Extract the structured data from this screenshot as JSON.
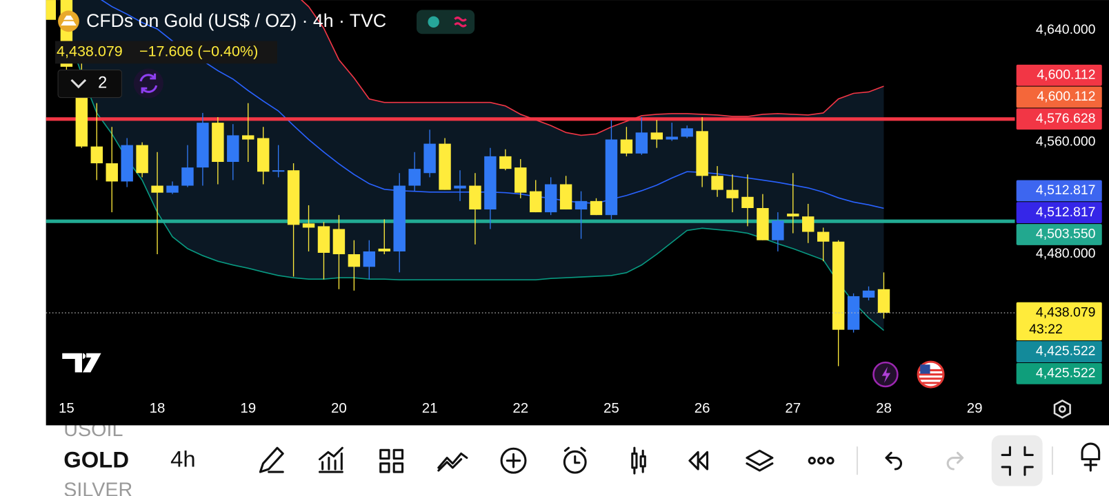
{
  "header": {
    "symbol_title": "CFDs on Gold (US$ / OZ) · 4h · TVC",
    "last_price": "4,438.079",
    "change": "−17.606 (−0.40%)",
    "layout_count": "2"
  },
  "toolbar": {
    "symbols": [
      "USOIL",
      "GOLD",
      "SILVER"
    ],
    "interval": "4h"
  },
  "chart_data": {
    "type": "candlestick",
    "categories": [
      "15",
      null,
      null,
      null,
      null,
      null,
      "18",
      null,
      null,
      null,
      null,
      null,
      "19",
      null,
      null,
      null,
      null,
      null,
      "20",
      null,
      null,
      null,
      null,
      null,
      "21",
      null,
      null,
      null,
      null,
      null,
      "22",
      null,
      null,
      null,
      null,
      null,
      "25",
      null,
      null,
      null,
      null,
      null,
      "26",
      null,
      null,
      null,
      null,
      null,
      "27",
      null,
      null,
      null,
      null,
      null,
      "28",
      null,
      null,
      null,
      null,
      null,
      "29"
    ],
    "open": [
      4680,
      4611,
      4557,
      4545,
      4532,
      4558,
      4529,
      4524,
      4529,
      4542,
      4574,
      4546,
      4565,
      4563,
      4539,
      4540,
      4502,
      4500,
      4498,
      4480,
      4471,
      4484,
      4482,
      4529,
      4538,
      4559,
      4527,
      4529,
      4512,
      4550,
      4542,
      4525,
      4510,
      4530,
      4512,
      4518,
      4508,
      4562,
      4552,
      4567,
      4562,
      4564,
      4568,
      4536,
      4526,
      4521,
      4513,
      4490,
      4509,
      4507,
      4496,
      4489,
      4426,
      4449,
      4455,
      null,
      null,
      null,
      null,
      null,
      null
    ],
    "high": [
      4690,
      4619,
      4588,
      4571,
      4563,
      4560,
      4553,
      4532,
      4558,
      4581,
      4578,
      4573,
      4588,
      4571,
      4558,
      4545,
      4515,
      4503,
      4508,
      4490,
      4490,
      4505,
      4538,
      4553,
      4569,
      4563,
      4540,
      4538,
      4556,
      4555,
      4548,
      4533,
      4535,
      4536,
      4525,
      4520,
      4576,
      4571,
      4578,
      4576,
      4574,
      4572,
      4578,
      4543,
      4537,
      4537,
      4523,
      4510,
      4538,
      4516,
      4499,
      4490,
      4452,
      4457,
      4467,
      null,
      null,
      null,
      null,
      null,
      null
    ],
    "low": [
      4608,
      4556,
      4533,
      4510,
      4528,
      4535,
      4480,
      4523,
      4528,
      4529,
      4530,
      4533,
      4546,
      4530,
      4535,
      4464,
      4482,
      4462,
      4455,
      4454,
      4462,
      4480,
      4467,
      4525,
      4535,
      4526,
      4518,
      4487,
      4498,
      4540,
      4520,
      4510,
      4508,
      4512,
      4491,
      4508,
      4505,
      4550,
      4551,
      4556,
      4561,
      4563,
      4528,
      4521,
      4510,
      4500,
      4490,
      4482,
      4495,
      4488,
      4475,
      4400,
      4424,
      4447,
      4434,
      null,
      null,
      null,
      null,
      null,
      null
    ],
    "close": [
      4614,
      4557,
      4545,
      4532,
      4558,
      4538,
      4524,
      4529,
      4542,
      4574,
      4546,
      4565,
      4562,
      4539,
      4540,
      4501,
      4499,
      4481,
      4480,
      4471,
      4482,
      4482,
      4529,
      4541,
      4559,
      4526,
      4529,
      4512,
      4550,
      4541,
      4524,
      4510,
      4530,
      4512,
      4518,
      4508,
      4562,
      4552,
      4567,
      4562,
      4564,
      4570,
      4536,
      4526,
      4520,
      4513,
      4490,
      4504,
      4507,
      4496,
      4489,
      4426,
      4450,
      4454,
      4438.079,
      null,
      null,
      null,
      null,
      null,
      null
    ],
    "up_color": "#3179f5",
    "down_color": "#ffeb3b",
    "overlays": [
      {
        "color": "#f23645",
        "values": [
          4700,
          4692,
          4697,
          4697,
          4697,
          4692,
          4692,
          4689.5,
          4687,
          4687,
          4684,
          4682,
          4679,
          4677,
          4672,
          4667,
          4657,
          4641.5,
          4619,
          4606,
          4591,
          4588.5,
          4588.5,
          4588.5,
          4588.5,
          4588.5,
          4588.5,
          4588.5,
          4588.5,
          4586,
          4580,
          4576,
          4572,
          4567,
          4565,
          4566,
          4571,
          4575,
          4579,
          4580,
          4580.5,
          4580.5,
          4580,
          4579.5,
          4578.5,
          4578.5,
          4580,
          4580.5,
          4580,
          4579.5,
          4581,
          4591,
          4595,
          4596,
          4600.112,
          null,
          null,
          null,
          null,
          null,
          null
        ]
      },
      {
        "color": "#2962ff",
        "values": [
          4680,
          4672,
          4664,
          4657,
          4651.6,
          4645.6,
          4641,
          4632.4,
          4626.4,
          4618.3,
          4611.2,
          4605.2,
          4597,
          4589.5,
          4582.4,
          4572,
          4562,
          4553,
          4544.6,
          4537,
          4530.4,
          4526.4,
          4525.4,
          4525,
          4524.4,
          4524.4,
          4524.4,
          4524.4,
          4524.4,
          4524,
          4523,
          4521.3,
          4520,
          4518,
          4517,
          4516.3,
          4519.3,
          4522,
          4525.4,
          4529.4,
          4534.5,
          4539,
          4538.5,
          4537.5,
          4536,
          4534.5,
          4533,
          4531.4,
          4529.4,
          4527.4,
          4524.4,
          4520.3,
          4517.3,
          4515.3,
          4512.817,
          null,
          null,
          null,
          null,
          null,
          null
        ]
      },
      {
        "color": "#089981",
        "values": [
          4640,
          4608.7,
          4581,
          4566,
          4548,
          4533,
          4510,
          4492.5,
          4484,
          4479,
          4475,
          4472.3,
          4470,
          4467.3,
          4464.8,
          4463.2,
          4462.2,
          4462.2,
          4463.2,
          4463.2,
          4462.2,
          4462.2,
          4461.7,
          4461.7,
          4461.7,
          4461.7,
          4461.7,
          4461.7,
          4461.7,
          4461.7,
          4461.7,
          4461.7,
          4462.7,
          4463.2,
          4463.7,
          4464.2,
          4464.8,
          4466.8,
          4472.3,
          4480,
          4488.5,
          4497,
          4498.6,
          4497.6,
          4496.6,
          4495,
          4491.5,
          4487.5,
          4484,
          4480,
          4476,
          4459.7,
          4445.6,
          4434.5,
          4425.522,
          null,
          null,
          null,
          null,
          null,
          null
        ]
      }
    ],
    "band_fill": "#0b1824",
    "hlines": [
      {
        "value": 4576.628,
        "color": "#f23645"
      },
      {
        "value": 4503.55,
        "color": "#22ab94"
      }
    ],
    "ylim": [
      4378.9,
      4661.7
    ],
    "yticks": [
      {
        "value": 4640,
        "label": "4,640.000"
      },
      {
        "value": 4560,
        "label": "4,560.000"
      },
      {
        "value": 4480,
        "label": "4,480.000"
      }
    ],
    "grid": false,
    "price_tags": [
      {
        "value": 4600.112,
        "label": "4,600.112",
        "color": "#f23645"
      },
      {
        "value": 4600.112,
        "label": "4,600.112",
        "color": "#f4673a"
      },
      {
        "value": 4576.628,
        "label": "4,576.628",
        "color": "#f23645"
      },
      {
        "value": 4512.817,
        "label": "4,512.817",
        "color": "#3d66f0"
      },
      {
        "value": 4512.817,
        "label": "4,512.817",
        "color": "#3526e8"
      },
      {
        "value": 4503.55,
        "label": "4,503.550",
        "color": "#22a88f"
      },
      {
        "value": 4438.079,
        "label": "4,438.079",
        "color": "#ffeb3b",
        "text_color": "#000000",
        "countdown": "43:22"
      },
      {
        "value": 4425.522,
        "label": "4,425.522",
        "color": "#138a9a"
      },
      {
        "value": 4425.522,
        "label": "4,425.522",
        "color": "#0f9e7b"
      }
    ]
  }
}
